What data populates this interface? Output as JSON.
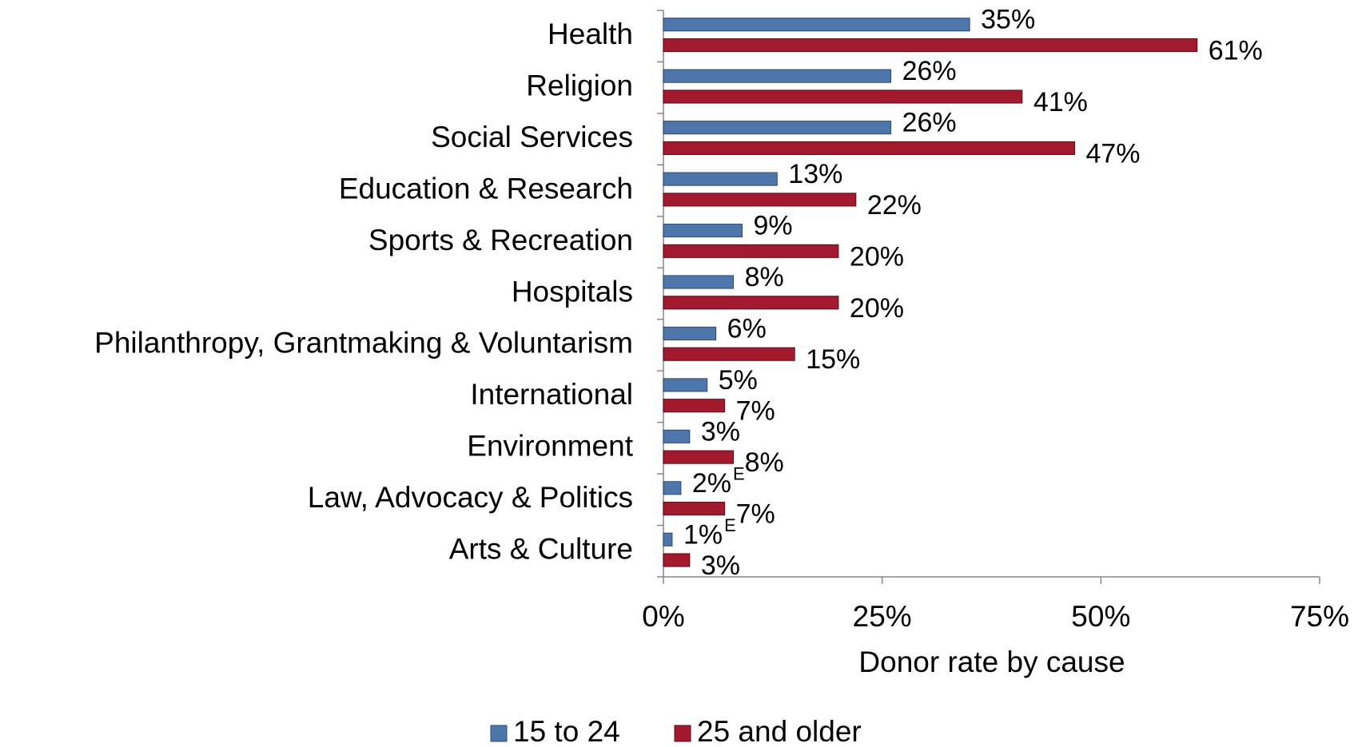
{
  "chart_data": {
    "type": "bar",
    "orientation": "horizontal",
    "categories": [
      "Health",
      "Religion",
      "Social Services",
      "Education & Research",
      "Sports & Recreation",
      "Hospitals",
      "Philanthropy, Grantmaking & Voluntarism",
      "International",
      "Environment",
      "Law, Advocacy & Politics",
      "Arts & Culture"
    ],
    "series": [
      {
        "name": "15 to 24",
        "color": "#4f76ab",
        "values": [
          35,
          26,
          26,
          13,
          9,
          8,
          6,
          5,
          3,
          2,
          1
        ],
        "value_labels": [
          "35%",
          "26%",
          "26%",
          "13%",
          "9%",
          "8%",
          "6%",
          "5%",
          "3%",
          "2%",
          "1%"
        ],
        "value_flags": [
          null,
          null,
          null,
          null,
          null,
          null,
          null,
          null,
          null,
          "E",
          "E"
        ]
      },
      {
        "name": "25 and older",
        "color": "#a31a2e",
        "values": [
          61,
          41,
          47,
          22,
          20,
          20,
          15,
          7,
          8,
          7,
          3
        ],
        "value_labels": [
          "61%",
          "41%",
          "47%",
          "22%",
          "20%",
          "20%",
          "15%",
          "7%",
          "8%",
          "7%",
          "3%"
        ]
      }
    ],
    "xlabel": "Donor rate by cause",
    "xlim": [
      0,
      75
    ],
    "xticks": [
      {
        "value": 0,
        "label": "0%"
      },
      {
        "value": 25,
        "label": "25%"
      },
      {
        "value": 50,
        "label": "50%"
      },
      {
        "value": 75,
        "label": "75%"
      }
    ],
    "grid": false,
    "legend": "bottom"
  }
}
